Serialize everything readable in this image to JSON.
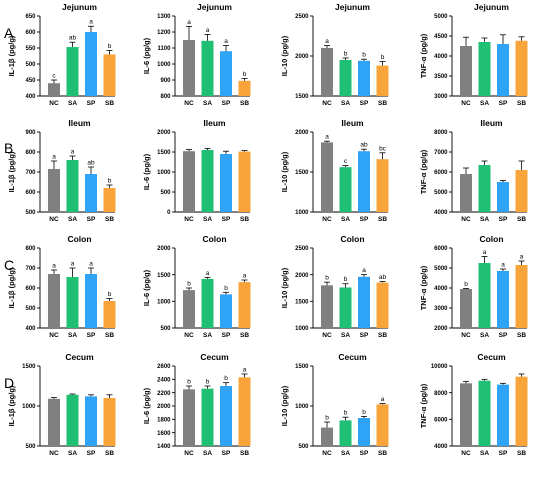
{
  "row_labels": [
    "A",
    "B",
    "C",
    "D"
  ],
  "colors": {
    "NC": "#808080",
    "SA": "#1fbf74",
    "SP": "#2fa4f7",
    "SB": "#f9a43a"
  },
  "chart_data": [
    {
      "type": "bar",
      "row": 0,
      "col": 0,
      "title": "Jejunum",
      "ylabel": "IL-1β (pg/g)",
      "categories": [
        "NC",
        "SA",
        "SP",
        "SB"
      ],
      "values": [
        440,
        553,
        600,
        530
      ],
      "errors": [
        10,
        15,
        18,
        12
      ],
      "letters": [
        "c",
        "ab",
        "a",
        "b"
      ],
      "ylim": [
        400,
        650
      ],
      "yticks": [
        400,
        450,
        500,
        550,
        600,
        650
      ]
    },
    {
      "type": "bar",
      "row": 0,
      "col": 1,
      "title": "Jejunum",
      "ylabel": "IL-6 (pg/g)",
      "categories": [
        "NC",
        "SA",
        "SP",
        "SB"
      ],
      "values": [
        1150,
        1145,
        1080,
        895
      ],
      "errors": [
        85,
        40,
        35,
        15
      ],
      "letters": [
        "a",
        "a",
        "a",
        "b"
      ],
      "ylim": [
        800,
        1300
      ],
      "yticks": [
        800,
        900,
        1000,
        1100,
        1200,
        1300
      ]
    },
    {
      "type": "bar",
      "row": 0,
      "col": 2,
      "title": "Jejunum",
      "ylabel": "IL-10 (pg/g)",
      "categories": [
        "NC",
        "SA",
        "SP",
        "SB"
      ],
      "values": [
        2100,
        1950,
        1940,
        1880
      ],
      "errors": [
        30,
        25,
        20,
        50
      ],
      "letters": [
        "a",
        "b",
        "b",
        "b"
      ],
      "ylim": [
        1500,
        2500
      ],
      "yticks": [
        1500,
        2000,
        2500
      ]
    },
    {
      "type": "bar",
      "row": 0,
      "col": 3,
      "title": "Jejunum",
      "ylabel": "TNF-α (pg/g)",
      "categories": [
        "NC",
        "SA",
        "SP",
        "SB"
      ],
      "values": [
        4250,
        4350,
        4300,
        4380
      ],
      "errors": [
        220,
        100,
        230,
        100
      ],
      "letters": [
        "",
        "",
        "",
        ""
      ],
      "ylim": [
        3000,
        5000
      ],
      "yticks": [
        3000,
        3500,
        4000,
        4500,
        5000
      ]
    },
    {
      "type": "bar",
      "row": 1,
      "col": 0,
      "title": "Ileum",
      "ylabel": "IL-1β (pg/g)",
      "categories": [
        "NC",
        "SA",
        "SP",
        "SB"
      ],
      "values": [
        715,
        760,
        690,
        620
      ],
      "errors": [
        40,
        20,
        35,
        15
      ],
      "letters": [
        "a",
        "a",
        "ab",
        "b"
      ],
      "ylim": [
        500,
        900
      ],
      "yticks": [
        500,
        600,
        700,
        800,
        900
      ]
    },
    {
      "type": "bar",
      "row": 1,
      "col": 1,
      "title": "Ileum",
      "ylabel": "IL-6 (pg/g)",
      "categories": [
        "NC",
        "SA",
        "SP",
        "SB"
      ],
      "values": [
        1520,
        1550,
        1450,
        1510
      ],
      "errors": [
        40,
        40,
        70,
        25
      ],
      "letters": [
        "",
        "",
        "",
        ""
      ],
      "ylim": [
        0,
        2000
      ],
      "yticks": [
        0,
        500,
        1000,
        1500,
        2000
      ]
    },
    {
      "type": "bar",
      "row": 1,
      "col": 2,
      "title": "Ileum",
      "ylabel": "IL-10 (pg/g)",
      "categories": [
        "NC",
        "SA",
        "SP",
        "SB"
      ],
      "values": [
        1870,
        1560,
        1760,
        1660
      ],
      "errors": [
        15,
        20,
        25,
        80
      ],
      "letters": [
        "a",
        "c",
        "ab",
        "bc"
      ],
      "ylim": [
        1000,
        2000
      ],
      "yticks": [
        1000,
        1500,
        2000
      ]
    },
    {
      "type": "bar",
      "row": 1,
      "col": 3,
      "title": "Ileum",
      "ylabel": "TNF-α (pg/g)",
      "categories": [
        "NC",
        "SA",
        "SP",
        "SB"
      ],
      "values": [
        5900,
        6350,
        5500,
        6100
      ],
      "errors": [
        300,
        200,
        80,
        450
      ],
      "letters": [
        "",
        "",
        "",
        ""
      ],
      "ylim": [
        4000,
        8000
      ],
      "yticks": [
        4000,
        5000,
        6000,
        7000,
        8000
      ]
    },
    {
      "type": "bar",
      "row": 2,
      "col": 0,
      "title": "Colon",
      "ylabel": "IL-1β (pg/g)",
      "categories": [
        "NC",
        "SA",
        "SP",
        "SB"
      ],
      "values": [
        670,
        655,
        670,
        535
      ],
      "errors": [
        20,
        45,
        30,
        12
      ],
      "letters": [
        "a",
        "a",
        "a",
        "b"
      ],
      "ylim": [
        400,
        800
      ],
      "yticks": [
        400,
        500,
        600,
        700,
        800
      ]
    },
    {
      "type": "bar",
      "row": 2,
      "col": 1,
      "title": "Colon",
      "ylabel": "IL-6 (pg/g)",
      "categories": [
        "NC",
        "SA",
        "SP",
        "SB"
      ],
      "values": [
        1210,
        1420,
        1130,
        1360
      ],
      "errors": [
        40,
        30,
        40,
        40
      ],
      "letters": [
        "b",
        "a",
        "b",
        "a"
      ],
      "ylim": [
        500,
        2000
      ],
      "yticks": [
        500,
        1000,
        1500,
        2000
      ]
    },
    {
      "type": "bar",
      "row": 2,
      "col": 2,
      "title": "Colon",
      "ylabel": "IL-10 (pg/g)",
      "categories": [
        "NC",
        "SA",
        "SP",
        "SB"
      ],
      "values": [
        1800,
        1760,
        1960,
        1850
      ],
      "errors": [
        60,
        70,
        40,
        20
      ],
      "letters": [
        "b",
        "b",
        "a",
        "ab"
      ],
      "ylim": [
        1000,
        2500
      ],
      "yticks": [
        1000,
        1500,
        2000,
        2500
      ]
    },
    {
      "type": "bar",
      "row": 2,
      "col": 3,
      "title": "Colon",
      "ylabel": "TNF-α (pg/g)",
      "categories": [
        "NC",
        "SA",
        "SP",
        "SB"
      ],
      "values": [
        3950,
        5250,
        4850,
        5150
      ],
      "errors": [
        30,
        330,
        100,
        200
      ],
      "letters": [
        "b",
        "a",
        "a",
        "a"
      ],
      "ylim": [
        2000,
        6000
      ],
      "yticks": [
        2000,
        3000,
        4000,
        5000,
        6000
      ]
    },
    {
      "type": "bar",
      "row": 3,
      "col": 0,
      "title": "Cecum",
      "ylabel": "IL-1β (pg/g)",
      "categories": [
        "NC",
        "SA",
        "SP",
        "SB"
      ],
      "values": [
        1090,
        1140,
        1120,
        1100
      ],
      "errors": [
        15,
        10,
        20,
        40
      ],
      "letters": [
        "",
        "",
        "",
        ""
      ],
      "ylim": [
        500,
        1500
      ],
      "yticks": [
        500,
        1000,
        1500
      ]
    },
    {
      "type": "bar",
      "row": 3,
      "col": 1,
      "title": "Cecum",
      "ylabel": "IL-6 (pg/g)",
      "categories": [
        "NC",
        "SA",
        "SP",
        "SB"
      ],
      "values": [
        2250,
        2260,
        2300,
        2430
      ],
      "errors": [
        50,
        40,
        50,
        50
      ],
      "letters": [
        "b",
        "b",
        "b",
        "a"
      ],
      "ylim": [
        1400,
        2600
      ],
      "yticks": [
        1400,
        1600,
        1800,
        2000,
        2200,
        2400,
        2600
      ]
    },
    {
      "type": "bar",
      "row": 3,
      "col": 2,
      "title": "Cecum",
      "ylabel": "IL-10 (pg/g)",
      "categories": [
        "NC",
        "SA",
        "SP",
        "SB"
      ],
      "values": [
        730,
        820,
        850,
        1020
      ],
      "errors": [
        70,
        40,
        20,
        10
      ],
      "letters": [
        "b",
        "b",
        "b",
        "a"
      ],
      "ylim": [
        500,
        1500
      ],
      "yticks": [
        500,
        1000,
        1500
      ]
    },
    {
      "type": "bar",
      "row": 3,
      "col": 3,
      "title": "Cecum",
      "ylabel": "TNF-α (pg/g)",
      "categories": [
        "NC",
        "SA",
        "SP",
        "SB"
      ],
      "values": [
        8700,
        8900,
        8600,
        9200
      ],
      "errors": [
        150,
        100,
        100,
        200
      ],
      "letters": [
        "",
        "",
        "",
        ""
      ],
      "ylim": [
        4000,
        10000
      ],
      "yticks": [
        4000,
        6000,
        8000,
        10000
      ]
    }
  ]
}
